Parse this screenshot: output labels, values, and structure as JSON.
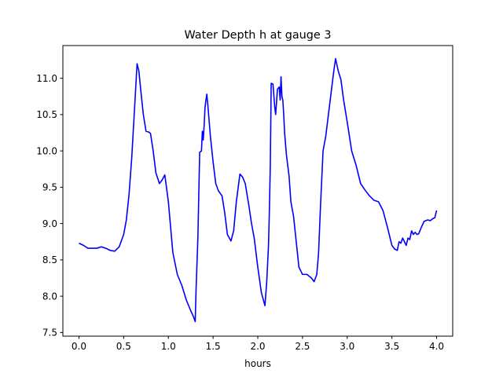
{
  "chart_data": {
    "type": "line",
    "title": "Water Depth h at gauge 3",
    "xlabel": "hours",
    "ylabel": "",
    "xlim": [
      -0.18,
      4.18
    ],
    "ylim": [
      7.45,
      11.45
    ],
    "xticks": [
      0.0,
      0.5,
      1.0,
      1.5,
      2.0,
      2.5,
      3.0,
      3.5,
      4.0
    ],
    "xtick_labels": [
      "0.0",
      "0.5",
      "1.0",
      "1.5",
      "2.0",
      "2.5",
      "3.0",
      "3.5",
      "4.0"
    ],
    "yticks": [
      7.5,
      8.0,
      8.5,
      9.0,
      9.5,
      10.0,
      10.5,
      11.0
    ],
    "ytick_labels": [
      "7.5",
      "8.0",
      "8.5",
      "9.0",
      "9.5",
      "10.0",
      "10.5",
      "11.0"
    ],
    "grid": false,
    "legend": "none",
    "series": [
      {
        "color": "#0000ff",
        "x": [
          0.0,
          0.05,
          0.1,
          0.15,
          0.2,
          0.25,
          0.3,
          0.35,
          0.4,
          0.45,
          0.5,
          0.53,
          0.56,
          0.59,
          0.62,
          0.65,
          0.67,
          0.69,
          0.72,
          0.75,
          0.78,
          0.8,
          0.83,
          0.86,
          0.9,
          0.93,
          0.96,
          1.0,
          1.05,
          1.1,
          1.15,
          1.2,
          1.25,
          1.28,
          1.3,
          1.31,
          1.33,
          1.35,
          1.37,
          1.38,
          1.39,
          1.4,
          1.41,
          1.42,
          1.43,
          1.44,
          1.45,
          1.47,
          1.5,
          1.53,
          1.56,
          1.6,
          1.63,
          1.66,
          1.7,
          1.73,
          1.76,
          1.8,
          1.83,
          1.86,
          1.9,
          1.93,
          1.96,
          2.0,
          2.04,
          2.08,
          2.1,
          2.12,
          2.13,
          2.14,
          2.15,
          2.17,
          2.19,
          2.2,
          2.22,
          2.24,
          2.25,
          2.26,
          2.27,
          2.28,
          2.29,
          2.3,
          2.32,
          2.35,
          2.37,
          2.4,
          2.43,
          2.46,
          2.5,
          2.55,
          2.6,
          2.63,
          2.66,
          2.68,
          2.7,
          2.73,
          2.76,
          2.8,
          2.83,
          2.85,
          2.87,
          2.9,
          2.93,
          2.96,
          3.0,
          3.05,
          3.1,
          3.15,
          3.2,
          3.25,
          3.3,
          3.35,
          3.4,
          3.45,
          3.5,
          3.53,
          3.56,
          3.58,
          3.6,
          3.62,
          3.64,
          3.66,
          3.68,
          3.7,
          3.72,
          3.74,
          3.76,
          3.78,
          3.8,
          3.83,
          3.86,
          3.9,
          3.93,
          3.96,
          3.98,
          4.0
        ],
        "y": [
          8.73,
          8.7,
          8.66,
          8.66,
          8.66,
          8.68,
          8.66,
          8.63,
          8.62,
          8.68,
          8.85,
          9.05,
          9.4,
          9.9,
          10.55,
          11.2,
          11.1,
          10.85,
          10.5,
          10.27,
          10.26,
          10.24,
          10.0,
          9.7,
          9.55,
          9.6,
          9.67,
          9.3,
          8.6,
          8.3,
          8.15,
          7.95,
          7.8,
          7.72,
          7.65,
          8.1,
          8.8,
          9.98,
          10.0,
          10.27,
          10.15,
          10.35,
          10.6,
          10.7,
          10.78,
          10.65,
          10.5,
          10.2,
          9.85,
          9.55,
          9.45,
          9.38,
          9.15,
          8.85,
          8.76,
          8.9,
          9.3,
          9.68,
          9.64,
          9.55,
          9.25,
          9.0,
          8.8,
          8.4,
          8.05,
          7.87,
          8.2,
          8.7,
          9.2,
          9.8,
          10.93,
          10.92,
          10.6,
          10.5,
          10.85,
          10.88,
          10.7,
          11.02,
          10.75,
          10.7,
          10.5,
          10.25,
          9.95,
          9.65,
          9.3,
          9.1,
          8.75,
          8.4,
          8.3,
          8.3,
          8.25,
          8.2,
          8.3,
          8.6,
          9.2,
          10.0,
          10.2,
          10.6,
          10.9,
          11.1,
          11.27,
          11.1,
          10.98,
          10.7,
          10.4,
          10.0,
          9.8,
          9.55,
          9.46,
          9.38,
          9.32,
          9.3,
          9.18,
          8.95,
          8.7,
          8.65,
          8.63,
          8.75,
          8.73,
          8.8,
          8.75,
          8.7,
          8.8,
          8.78,
          8.9,
          8.85,
          8.88,
          8.85,
          8.86,
          8.95,
          9.03,
          9.05,
          9.04,
          9.07,
          9.08,
          9.18
        ]
      }
    ]
  }
}
